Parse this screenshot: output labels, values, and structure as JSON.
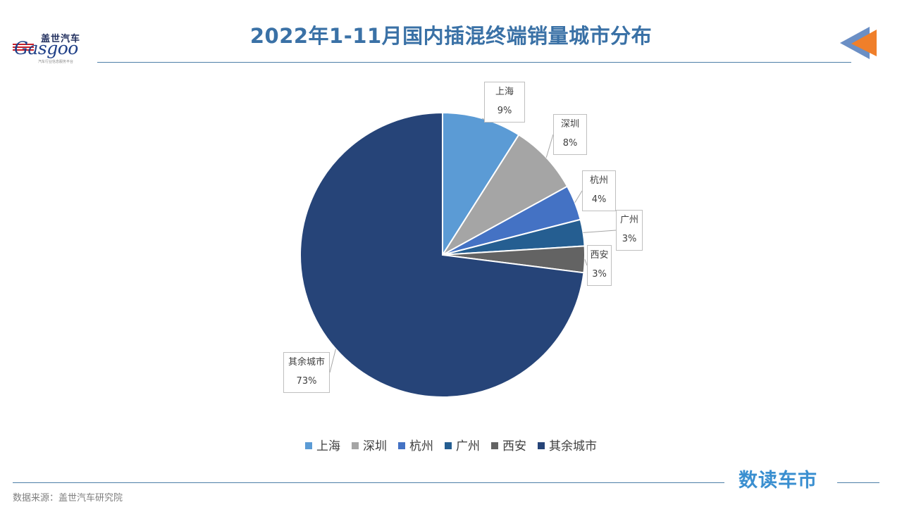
{
  "header": {
    "title": "2022年1-11月国内插混终端销量城市分布",
    "logo": {
      "cn_text": "盖世汽车",
      "en_text": "Gasgoo",
      "tagline": "汽车行业信息服务平台"
    }
  },
  "chart_data": {
    "type": "pie",
    "title": "",
    "categories": [
      "上海",
      "深圳",
      "杭州",
      "广州",
      "西安",
      "其余城市"
    ],
    "values": [
      9,
      8,
      4,
      3,
      3,
      73
    ],
    "value_labels": [
      "9%",
      "8%",
      "4%",
      "3%",
      "3%",
      "73%"
    ],
    "colors": [
      "#5b9bd5",
      "#a5a5a5",
      "#4472c4",
      "#255e91",
      "#636363",
      "#264478"
    ],
    "legend_position": "bottom"
  },
  "footer": {
    "brand": "数读车市",
    "source": "数据来源：盖世汽车研究院"
  },
  "colors": {
    "title": "#3a71a6",
    "rule": "#4d7fa8",
    "brand": "#3a8fd0",
    "arrow_blue": "#6b8fc5",
    "arrow_orange": "#f07f2a"
  }
}
